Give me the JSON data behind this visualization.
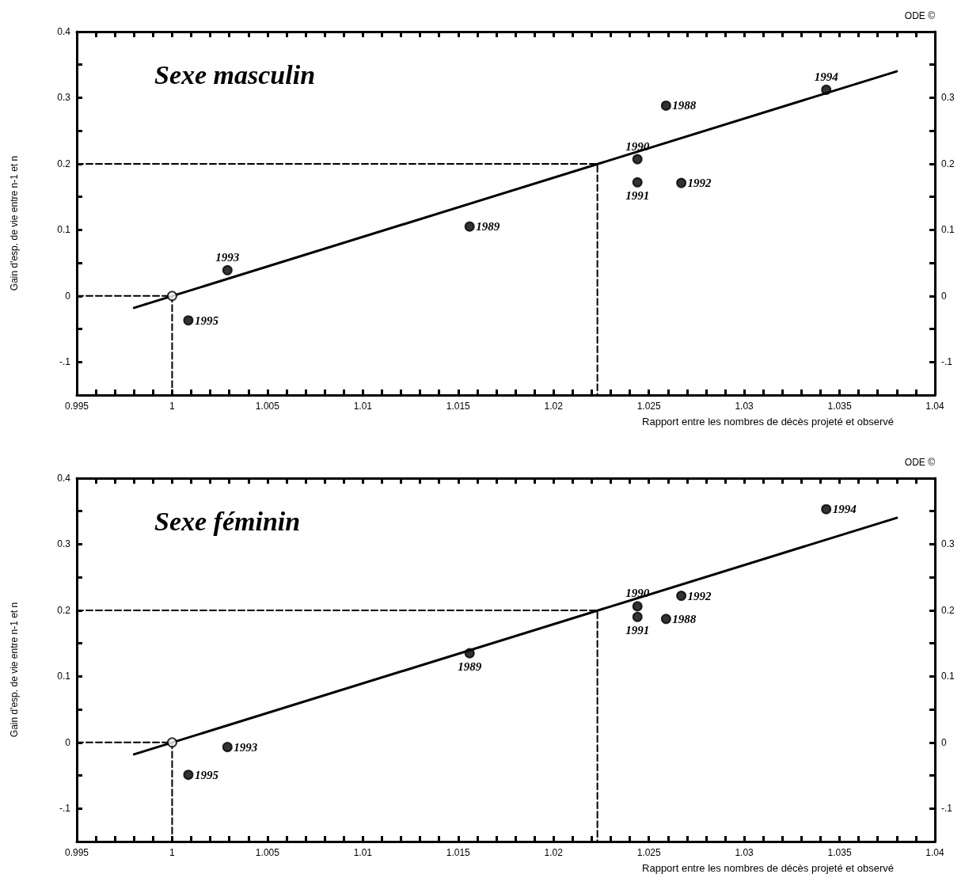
{
  "chart_data": [
    {
      "type": "scatter",
      "title": "Sexe masculin",
      "xlabel": "Rapport entre les nombres de décès projeté et observé",
      "ylabel": "Gain d'esp. de vie entre n-1 et n",
      "xlim": [
        0.995,
        1.04
      ],
      "ylim": [
        -0.15,
        0.4
      ],
      "y2lim": [
        -0.15,
        0.4
      ],
      "xticks": [
        0.995,
        {
          "value": 0.996,
          "label": null
        },
        {
          "value": 0.997,
          "label": null
        },
        {
          "value": 0.998,
          "label": null
        },
        {
          "value": 0.999,
          "label": null
        },
        1,
        {
          "value": 1.001,
          "label": null
        },
        {
          "value": 1.002,
          "label": null
        },
        {
          "value": 1.003,
          "label": null
        },
        {
          "value": 1.004,
          "label": null
        },
        1.005,
        {
          "value": 1.006,
          "label": null
        },
        {
          "value": 1.007,
          "label": null
        },
        {
          "value": 1.008,
          "label": null
        },
        {
          "value": 1.009,
          "label": null
        },
        1.01,
        {
          "value": 1.011,
          "label": null
        },
        {
          "value": 1.012,
          "label": null
        },
        {
          "value": 1.013,
          "label": null
        },
        {
          "value": 1.014,
          "label": null
        },
        1.015,
        {
          "value": 1.016,
          "label": null
        },
        {
          "value": 1.017,
          "label": null
        },
        {
          "value": 1.018,
          "label": null
        },
        {
          "value": 1.019,
          "label": null
        },
        1.02,
        {
          "value": 1.021,
          "label": null
        },
        {
          "value": 1.022,
          "label": null
        },
        {
          "value": 1.023,
          "label": null
        },
        {
          "value": 1.024,
          "label": null
        },
        1.025,
        {
          "value": 1.026,
          "label": null
        },
        {
          "value": 1.027,
          "label": null
        },
        {
          "value": 1.028,
          "label": null
        },
        {
          "value": 1.029,
          "label": null
        },
        1.03,
        {
          "value": 1.031,
          "label": null
        },
        {
          "value": 1.032,
          "label": null
        },
        {
          "value": 1.033,
          "label": null
        },
        {
          "value": 1.034,
          "label": null
        },
        1.035,
        {
          "value": 1.036,
          "label": null
        },
        {
          "value": 1.037,
          "label": null
        },
        {
          "value": 1.038,
          "label": null
        },
        {
          "value": 1.039,
          "label": null
        },
        1.04
      ],
      "yticks": [
        {
          "value": -0.1,
          "label": "-.1"
        },
        {
          "value": -0.05,
          "label": null
        },
        0,
        {
          "value": 0.05,
          "label": null
        },
        0.1,
        {
          "value": 0.15,
          "label": null
        },
        0.2,
        {
          "value": 0.25,
          "label": null
        },
        0.3,
        {
          "value": 0.35,
          "label": null
        },
        0.4
      ],
      "y2ticks": [
        {
          "value": -0.1,
          "label": "-.1"
        },
        {
          "value": -0.05,
          "label": null
        },
        0,
        {
          "value": 0.05,
          "label": null
        },
        0.1,
        {
          "value": 0.15,
          "label": null
        },
        0.2,
        {
          "value": 0.25,
          "label": null
        },
        0.3,
        {
          "value": 0.35,
          "label": null
        },
        {
          "value": 0.4,
          "label": null
        }
      ],
      "series": [
        {
          "color": "#000000",
          "marker": "circle",
          "x": [
            1.00085,
            1.0029,
            1.0156,
            1.0244,
            1.0244,
            1.0259,
            1.0267,
            1.0343
          ],
          "values": [
            -0.037,
            0.039,
            0.105,
            0.207,
            0.172,
            0.288,
            0.171,
            0.312
          ]
        },
        {
          "color": "#ffffff",
          "marker": "circle",
          "x": [
            1
          ],
          "values": [
            0
          ]
        },
        {
          "type": "line",
          "color": "#000000",
          "marker": "none",
          "line_style": "solid",
          "x": [
            0.998,
            1.038
          ],
          "values": [
            -0.018,
            0.34
          ]
        },
        {
          "type": "line",
          "color": "#000000",
          "marker": "none",
          "line_style": "dashed",
          "x": [
            0.995,
            1.0223,
            1.0223
          ],
          "values": [
            0.2,
            0.2,
            -0.15
          ]
        },
        {
          "type": "line",
          "color": "#000000",
          "marker": "none",
          "line_style": "dashed",
          "x": [
            0.995,
            1,
            1
          ],
          "values": [
            0,
            0,
            -0.15
          ]
        }
      ],
      "annotations": [
        "ODE ©",
        {
          "text": "1995",
          "x": 1.00085,
          "y": -0.037
        },
        {
          "text": "1993",
          "x": 1.0029,
          "y": 0.039
        },
        {
          "text": "1989",
          "x": 1.0156,
          "y": 0.105
        },
        {
          "text": "1990",
          "x": 1.0244,
          "y": 0.207
        },
        {
          "text": "1991",
          "x": 1.0244,
          "y": 0.172
        },
        {
          "text": "1988",
          "x": 1.0259,
          "y": 0.288
        },
        {
          "text": "1992",
          "x": 1.0267,
          "y": 0.171
        },
        {
          "text": "1994",
          "x": 1.0343,
          "y": 0.312
        }
      ]
    },
    {
      "type": "scatter",
      "title": "Sexe féminin",
      "xlabel": "Rapport entre les nombres de décès projeté et observé",
      "ylabel": "Gain d'esp. de vie entre n-1 et n",
      "xlim": [
        0.995,
        1.04
      ],
      "ylim": [
        -0.15,
        0.4
      ],
      "y2lim": [
        -0.15,
        0.4
      ],
      "xticks": [
        0.995,
        {
          "value": 0.996,
          "label": null
        },
        {
          "value": 0.997,
          "label": null
        },
        {
          "value": 0.998,
          "label": null
        },
        {
          "value": 0.999,
          "label": null
        },
        1,
        {
          "value": 1.001,
          "label": null
        },
        {
          "value": 1.002,
          "label": null
        },
        {
          "value": 1.003,
          "label": null
        },
        {
          "value": 1.004,
          "label": null
        },
        1.005,
        {
          "value": 1.006,
          "label": null
        },
        {
          "value": 1.007,
          "label": null
        },
        {
          "value": 1.008,
          "label": null
        },
        {
          "value": 1.009,
          "label": null
        },
        1.01,
        {
          "value": 1.011,
          "label": null
        },
        {
          "value": 1.012,
          "label": null
        },
        {
          "value": 1.013,
          "label": null
        },
        {
          "value": 1.014,
          "label": null
        },
        1.015,
        {
          "value": 1.016,
          "label": null
        },
        {
          "value": 1.017,
          "label": null
        },
        {
          "value": 1.018,
          "label": null
        },
        {
          "value": 1.019,
          "label": null
        },
        1.02,
        {
          "value": 1.021,
          "label": null
        },
        {
          "value": 1.022,
          "label": null
        },
        {
          "value": 1.023,
          "label": null
        },
        {
          "value": 1.024,
          "label": null
        },
        1.025,
        {
          "value": 1.026,
          "label": null
        },
        {
          "value": 1.027,
          "label": null
        },
        {
          "value": 1.028,
          "label": null
        },
        {
          "value": 1.029,
          "label": null
        },
        1.03,
        {
          "value": 1.031,
          "label": null
        },
        {
          "value": 1.032,
          "label": null
        },
        {
          "value": 1.033,
          "label": null
        },
        {
          "value": 1.034,
          "label": null
        },
        1.035,
        {
          "value": 1.036,
          "label": null
        },
        {
          "value": 1.037,
          "label": null
        },
        {
          "value": 1.038,
          "label": null
        },
        {
          "value": 1.039,
          "label": null
        },
        1.04
      ],
      "yticks": [
        {
          "value": -0.1,
          "label": "-.1"
        },
        {
          "value": -0.05,
          "label": null
        },
        0,
        {
          "value": 0.05,
          "label": null
        },
        0.1,
        {
          "value": 0.15,
          "label": null
        },
        0.2,
        {
          "value": 0.25,
          "label": null
        },
        0.3,
        {
          "value": 0.35,
          "label": null
        },
        0.4
      ],
      "y2ticks": [
        {
          "value": -0.1,
          "label": "-.1"
        },
        {
          "value": -0.05,
          "label": null
        },
        0,
        {
          "value": 0.05,
          "label": null
        },
        0.1,
        {
          "value": 0.15,
          "label": null
        },
        0.2,
        {
          "value": 0.25,
          "label": null
        },
        0.3,
        {
          "value": 0.35,
          "label": null
        },
        {
          "value": 0.4,
          "label": null
        }
      ],
      "series": [
        {
          "color": "#000000",
          "marker": "circle",
          "x": [
            1.00085,
            1.0029,
            1.0156,
            1.0244,
            1.0244,
            1.0259,
            1.0267,
            1.0343
          ],
          "values": [
            -0.049,
            -0.007,
            0.135,
            0.206,
            0.19,
            0.187,
            0.222,
            0.353
          ]
        },
        {
          "color": "#ffffff",
          "marker": "circle",
          "x": [
            1
          ],
          "values": [
            0
          ]
        },
        {
          "type": "line",
          "color": "#000000",
          "marker": "none",
          "line_style": "solid",
          "x": [
            0.998,
            1.038
          ],
          "values": [
            -0.018,
            0.34
          ]
        },
        {
          "type": "line",
          "color": "#000000",
          "marker": "none",
          "line_style": "dashed",
          "x": [
            0.995,
            1.0223,
            1.0223
          ],
          "values": [
            0.2,
            0.2,
            -0.15
          ]
        },
        {
          "type": "line",
          "color": "#000000",
          "marker": "none",
          "line_style": "dashed",
          "x": [
            0.995,
            1,
            1
          ],
          "values": [
            0,
            0,
            -0.15
          ]
        }
      ],
      "annotations": [
        "ODE ©",
        {
          "text": "1995",
          "x": 1.00085,
          "y": -0.049
        },
        {
          "text": "1993",
          "x": 1.0029,
          "y": -0.007
        },
        {
          "text": "1989",
          "x": 1.0156,
          "y": 0.135
        },
        {
          "text": "1990",
          "x": 1.0244,
          "y": 0.206
        },
        {
          "text": "1991",
          "x": 1.0244,
          "y": 0.19
        },
        {
          "text": "1988",
          "x": 1.0259,
          "y": 0.187
        },
        {
          "text": "1992",
          "x": 1.0267,
          "y": 0.222
        },
        {
          "text": "1994",
          "x": 1.0343,
          "y": 0.353
        }
      ]
    }
  ]
}
